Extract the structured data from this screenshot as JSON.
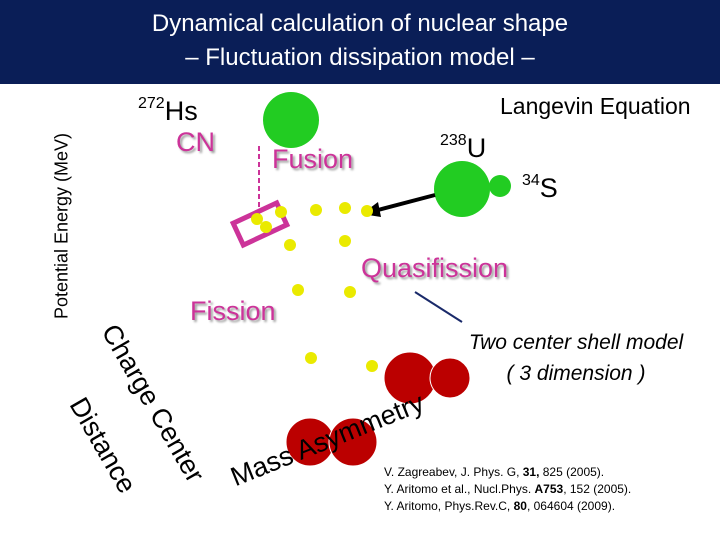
{
  "header": {
    "title_line1": "Dynamical calculation of nuclear shape",
    "title_line2": "– Fluctuation dissipation model –"
  },
  "axis": {
    "potential_energy": "Potential Energy (MeV)",
    "charge_center_line1": "Charge Center",
    "charge_center_line2": "Distance",
    "mass_asymmetry": "Mass Asymmetry"
  },
  "labels": {
    "langevin": "Langevin Equation",
    "cn_mass": "272",
    "cn_element": "Hs",
    "cn": "CN",
    "fusion": "Fusion",
    "target_mass": "238",
    "target_element": "U",
    "projectile_mass": "34",
    "projectile_element": "S",
    "quasifission": "Quasifission",
    "fission": "Fission",
    "shell_model_line1": "Two center shell model",
    "shell_model_line2": "( 3 dimension )"
  },
  "references": [
    {
      "before": "V. Zagreabev, J. Phys. G, ",
      "bold": "31,",
      "after": " 825 (2005)."
    },
    {
      "before": "Y. Aritomo et al., Nucl.Phys. ",
      "bold": "A753",
      "after": ", 152 (2005)."
    },
    {
      "before": "Y. Aritomo, Phys.Rev.C, ",
      "bold": "80",
      "after": ", 064604 (2009)."
    }
  ],
  "colors": {
    "header": "#0a1e57",
    "pink": "#cc3399",
    "green": "#22cc22",
    "dark_red": "#bb0000",
    "yellow": "#eaea00"
  }
}
